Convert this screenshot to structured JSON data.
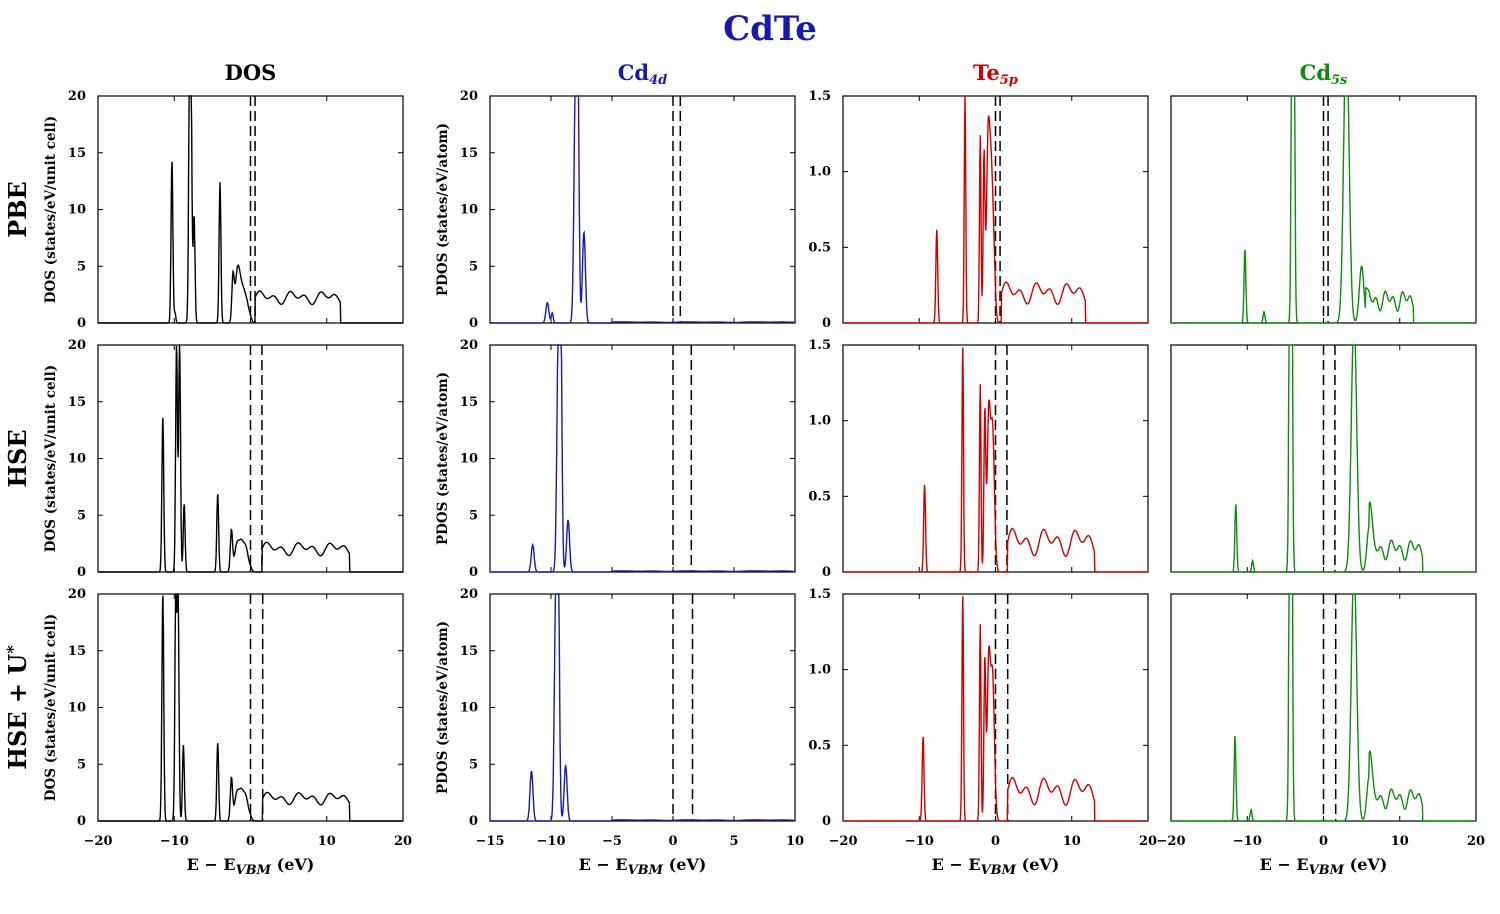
{
  "chart_data": {
    "type": "line",
    "title": "CdTe",
    "title_color": "#1a1aa8",
    "row_labels": [
      "PBE",
      "HSE",
      "HSE + U*"
    ],
    "columns": [
      {
        "key": "dos",
        "title": "DOS",
        "title_sub": "",
        "color": "#000000",
        "xlim": [
          -20,
          20
        ],
        "xticks": [
          -20,
          -10,
          0,
          10,
          20
        ],
        "ylim": [
          0,
          20
        ],
        "yticks": [
          "0",
          "5",
          "10",
          "15",
          "20"
        ],
        "ylabel": "DOS (states/eV/unit cell)"
      },
      {
        "key": "cd4d",
        "title": "Cd",
        "title_sub": "4d",
        "color": "#1a1aa8",
        "xlim": [
          -15,
          10
        ],
        "xticks": [
          -15,
          -10,
          -5,
          0,
          5,
          10
        ],
        "ylim": [
          0,
          20
        ],
        "yticks": [
          "0",
          "5",
          "10",
          "15",
          "20"
        ],
        "ylabel": "PDOS (states/eV/atom)"
      },
      {
        "key": "te5p",
        "title": "Te",
        "title_sub": "5p",
        "color": "#cc0000",
        "xlim": [
          -20,
          20
        ],
        "xticks": [
          -20,
          -10,
          0,
          10,
          20
        ],
        "ylim": [
          0,
          1.5
        ],
        "yticks": [
          "0",
          "0.5",
          "1.0",
          "1.5"
        ],
        "ylabel": ""
      },
      {
        "key": "cd5s",
        "title": "Cd",
        "title_sub": "5s",
        "color": "#108a10",
        "xlim": [
          -20,
          20
        ],
        "xticks": [
          -20,
          -10,
          0,
          10,
          20
        ],
        "ylim": [
          0,
          0.4
        ],
        "yticks": [],
        "ylabel": ""
      }
    ],
    "xlabel": "E − E",
    "xlabel_sub": "VBM",
    "xlabel_unit": "(eV)",
    "band_edges": [
      {
        "vbm": 0,
        "cbm": 0.6
      },
      {
        "vbm": 0,
        "cbm": 1.5
      },
      {
        "vbm": 0,
        "cbm": 1.6
      }
    ],
    "series": [
      {
        "row": "PBE",
        "dos": {
          "xs": [
            -10.3,
            -9.9,
            -8.0,
            -7.8,
            -7.4,
            -4.0,
            -2.3,
            -1.8,
            -1.5,
            -1.0,
            -0.5,
            0.0
          ],
          "hs": [
            14.3,
            0.9,
            20.0,
            20.0,
            9.5,
            12.4,
            3.7,
            2.9,
            2.6,
            2.2,
            1.6,
            0.3
          ],
          "ws": [
            0.12,
            0.1,
            0.12,
            0.12,
            0.12,
            0.12,
            0.15,
            0.3,
            0.3,
            0.3,
            0.3,
            0.2
          ],
          "plateau": [
            0.6,
            11.8,
            1.6,
            2.9
          ]
        },
        "cd4d": {
          "xs": [
            -10.3,
            -9.9,
            -8.0,
            -7.8,
            -7.3
          ],
          "hs": [
            1.8,
            0.9,
            20.0,
            20.0,
            8.0
          ],
          "ws": [
            0.12,
            0.08,
            0.12,
            0.1,
            0.12
          ],
          "plateau": [
            -5,
            10,
            0.05,
            0.1
          ]
        },
        "te5p": {
          "xs": [
            -7.7,
            -4.0,
            -2.0,
            -1.5,
            -1.0,
            -0.6,
            -0.2
          ],
          "hs": [
            0.62,
            1.5,
            1.24,
            1.1,
            1.0,
            1.0,
            0.3
          ],
          "ws": [
            0.12,
            0.1,
            0.1,
            0.12,
            0.2,
            0.25,
            0.2
          ],
          "plateau": [
            0.8,
            11.8,
            0.12,
            0.28
          ]
        },
        "cd5s": {
          "xs": [
            -10.3,
            -7.8,
            -4.0,
            3.0,
            5.0
          ],
          "hs": [
            0.13,
            0.02,
            1.5,
            0.52,
            0.1
          ],
          "ws": [
            0.12,
            0.12,
            0.15,
            0.35,
            0.3
          ],
          "plateau": [
            5.5,
            11.8,
            0.02,
            0.06
          ]
        }
      },
      {
        "row": "HSE",
        "dos": {
          "xs": [
            -11.5,
            -9.7,
            -9.3,
            -8.7,
            -4.3,
            -2.5,
            -1.8,
            -1.2,
            -0.6,
            0.0
          ],
          "hs": [
            13.7,
            20.0,
            20.0,
            6.0,
            6.9,
            3.6,
            2.3,
            2.3,
            2.0,
            0.3
          ],
          "ws": [
            0.12,
            0.12,
            0.12,
            0.12,
            0.12,
            0.15,
            0.3,
            0.3,
            0.3,
            0.2
          ],
          "plateau": [
            1.5,
            13.0,
            1.4,
            2.7
          ]
        },
        "cd4d": {
          "xs": [
            -11.5,
            -9.4,
            -9.2,
            -8.6
          ],
          "hs": [
            2.4,
            20.0,
            20.0,
            4.6
          ],
          "ws": [
            0.12,
            0.12,
            0.1,
            0.12
          ],
          "plateau": [
            -5,
            10,
            0.05,
            0.1
          ]
        },
        "te5p": {
          "xs": [
            -9.3,
            -4.3,
            -2.0,
            -1.4,
            -0.9,
            -0.4
          ],
          "hs": [
            0.58,
            1.5,
            1.24,
            1.05,
            0.98,
            0.96
          ],
          "ws": [
            0.12,
            0.1,
            0.1,
            0.12,
            0.2,
            0.25
          ],
          "plateau": [
            1.6,
            13.0,
            0.1,
            0.3
          ]
        },
        "cd5s": {
          "xs": [
            -11.5,
            -9.3,
            -4.3,
            4.0,
            6.0
          ],
          "hs": [
            0.12,
            0.02,
            1.5,
            0.45,
            0.08
          ],
          "ws": [
            0.12,
            0.12,
            0.15,
            0.35,
            0.3
          ],
          "plateau": [
            6.0,
            13.0,
            0.02,
            0.06
          ]
        }
      },
      {
        "row": "HSE + U*",
        "dos": {
          "xs": [
            -11.5,
            -9.8,
            -9.5,
            -8.8,
            -4.3,
            -2.5,
            -1.8,
            -1.2,
            -0.6,
            0.0
          ],
          "hs": [
            20.0,
            20.0,
            20.0,
            6.7,
            6.9,
            3.7,
            2.3,
            2.3,
            2.0,
            0.3
          ],
          "ws": [
            0.12,
            0.12,
            0.12,
            0.12,
            0.12,
            0.15,
            0.3,
            0.3,
            0.3,
            0.2
          ],
          "plateau": [
            1.6,
            13.0,
            1.4,
            2.6
          ]
        },
        "cd4d": {
          "xs": [
            -11.6,
            -9.6,
            -9.4,
            -8.8
          ],
          "hs": [
            4.4,
            20.0,
            20.0,
            4.9
          ],
          "ws": [
            0.12,
            0.12,
            0.1,
            0.12
          ],
          "plateau": [
            -5,
            10,
            0.05,
            0.1
          ]
        },
        "te5p": {
          "xs": [
            -9.5,
            -4.3,
            -2.0,
            -1.4,
            -0.9,
            -0.4
          ],
          "hs": [
            0.56,
            1.5,
            1.3,
            1.05,
            1.0,
            0.97
          ],
          "ws": [
            0.12,
            0.1,
            0.1,
            0.12,
            0.2,
            0.25
          ],
          "plateau": [
            1.6,
            13.0,
            0.1,
            0.3
          ]
        },
        "cd5s": {
          "xs": [
            -11.6,
            -9.5,
            -4.3,
            4.0,
            6.0
          ],
          "hs": [
            0.15,
            0.02,
            1.5,
            0.45,
            0.08
          ],
          "ws": [
            0.12,
            0.12,
            0.15,
            0.35,
            0.3
          ],
          "plateau": [
            6.0,
            13.0,
            0.02,
            0.06
          ]
        }
      }
    ]
  }
}
